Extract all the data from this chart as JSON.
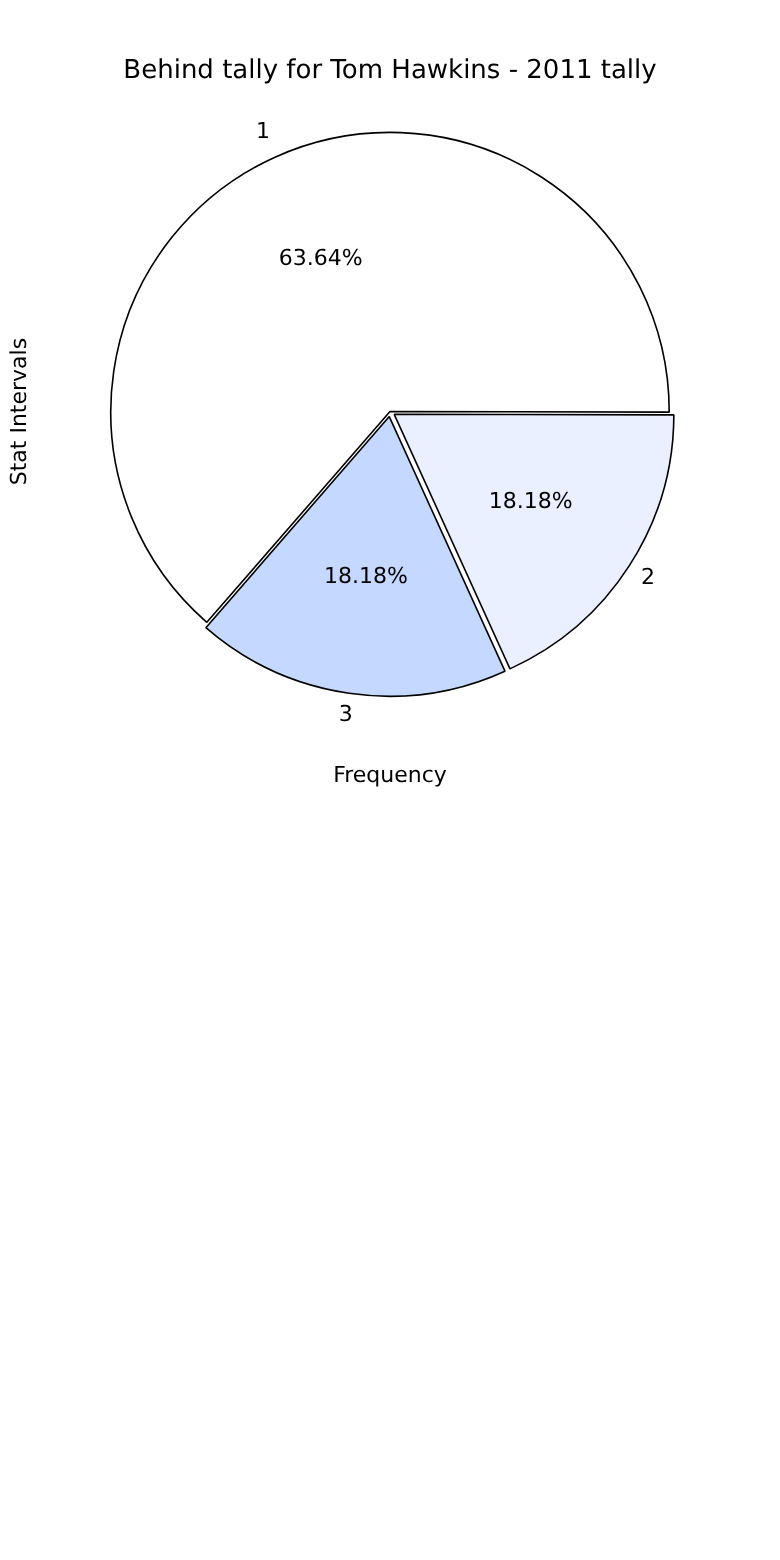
{
  "chart_data": {
    "type": "pie",
    "title": "Behind tally for Tom Hawkins - 2011 tally",
    "xlabel": "Frequency",
    "ylabel": "Stat Intervals",
    "categories": [
      "1",
      "2",
      "3"
    ],
    "values": [
      63.64,
      18.18,
      18.18
    ],
    "value_labels": [
      "63.64%",
      "18.18%",
      "18.18%"
    ],
    "colors": [
      "#ffffff",
      "#eaf0ff",
      "#c5d8ff"
    ],
    "legend": false
  }
}
